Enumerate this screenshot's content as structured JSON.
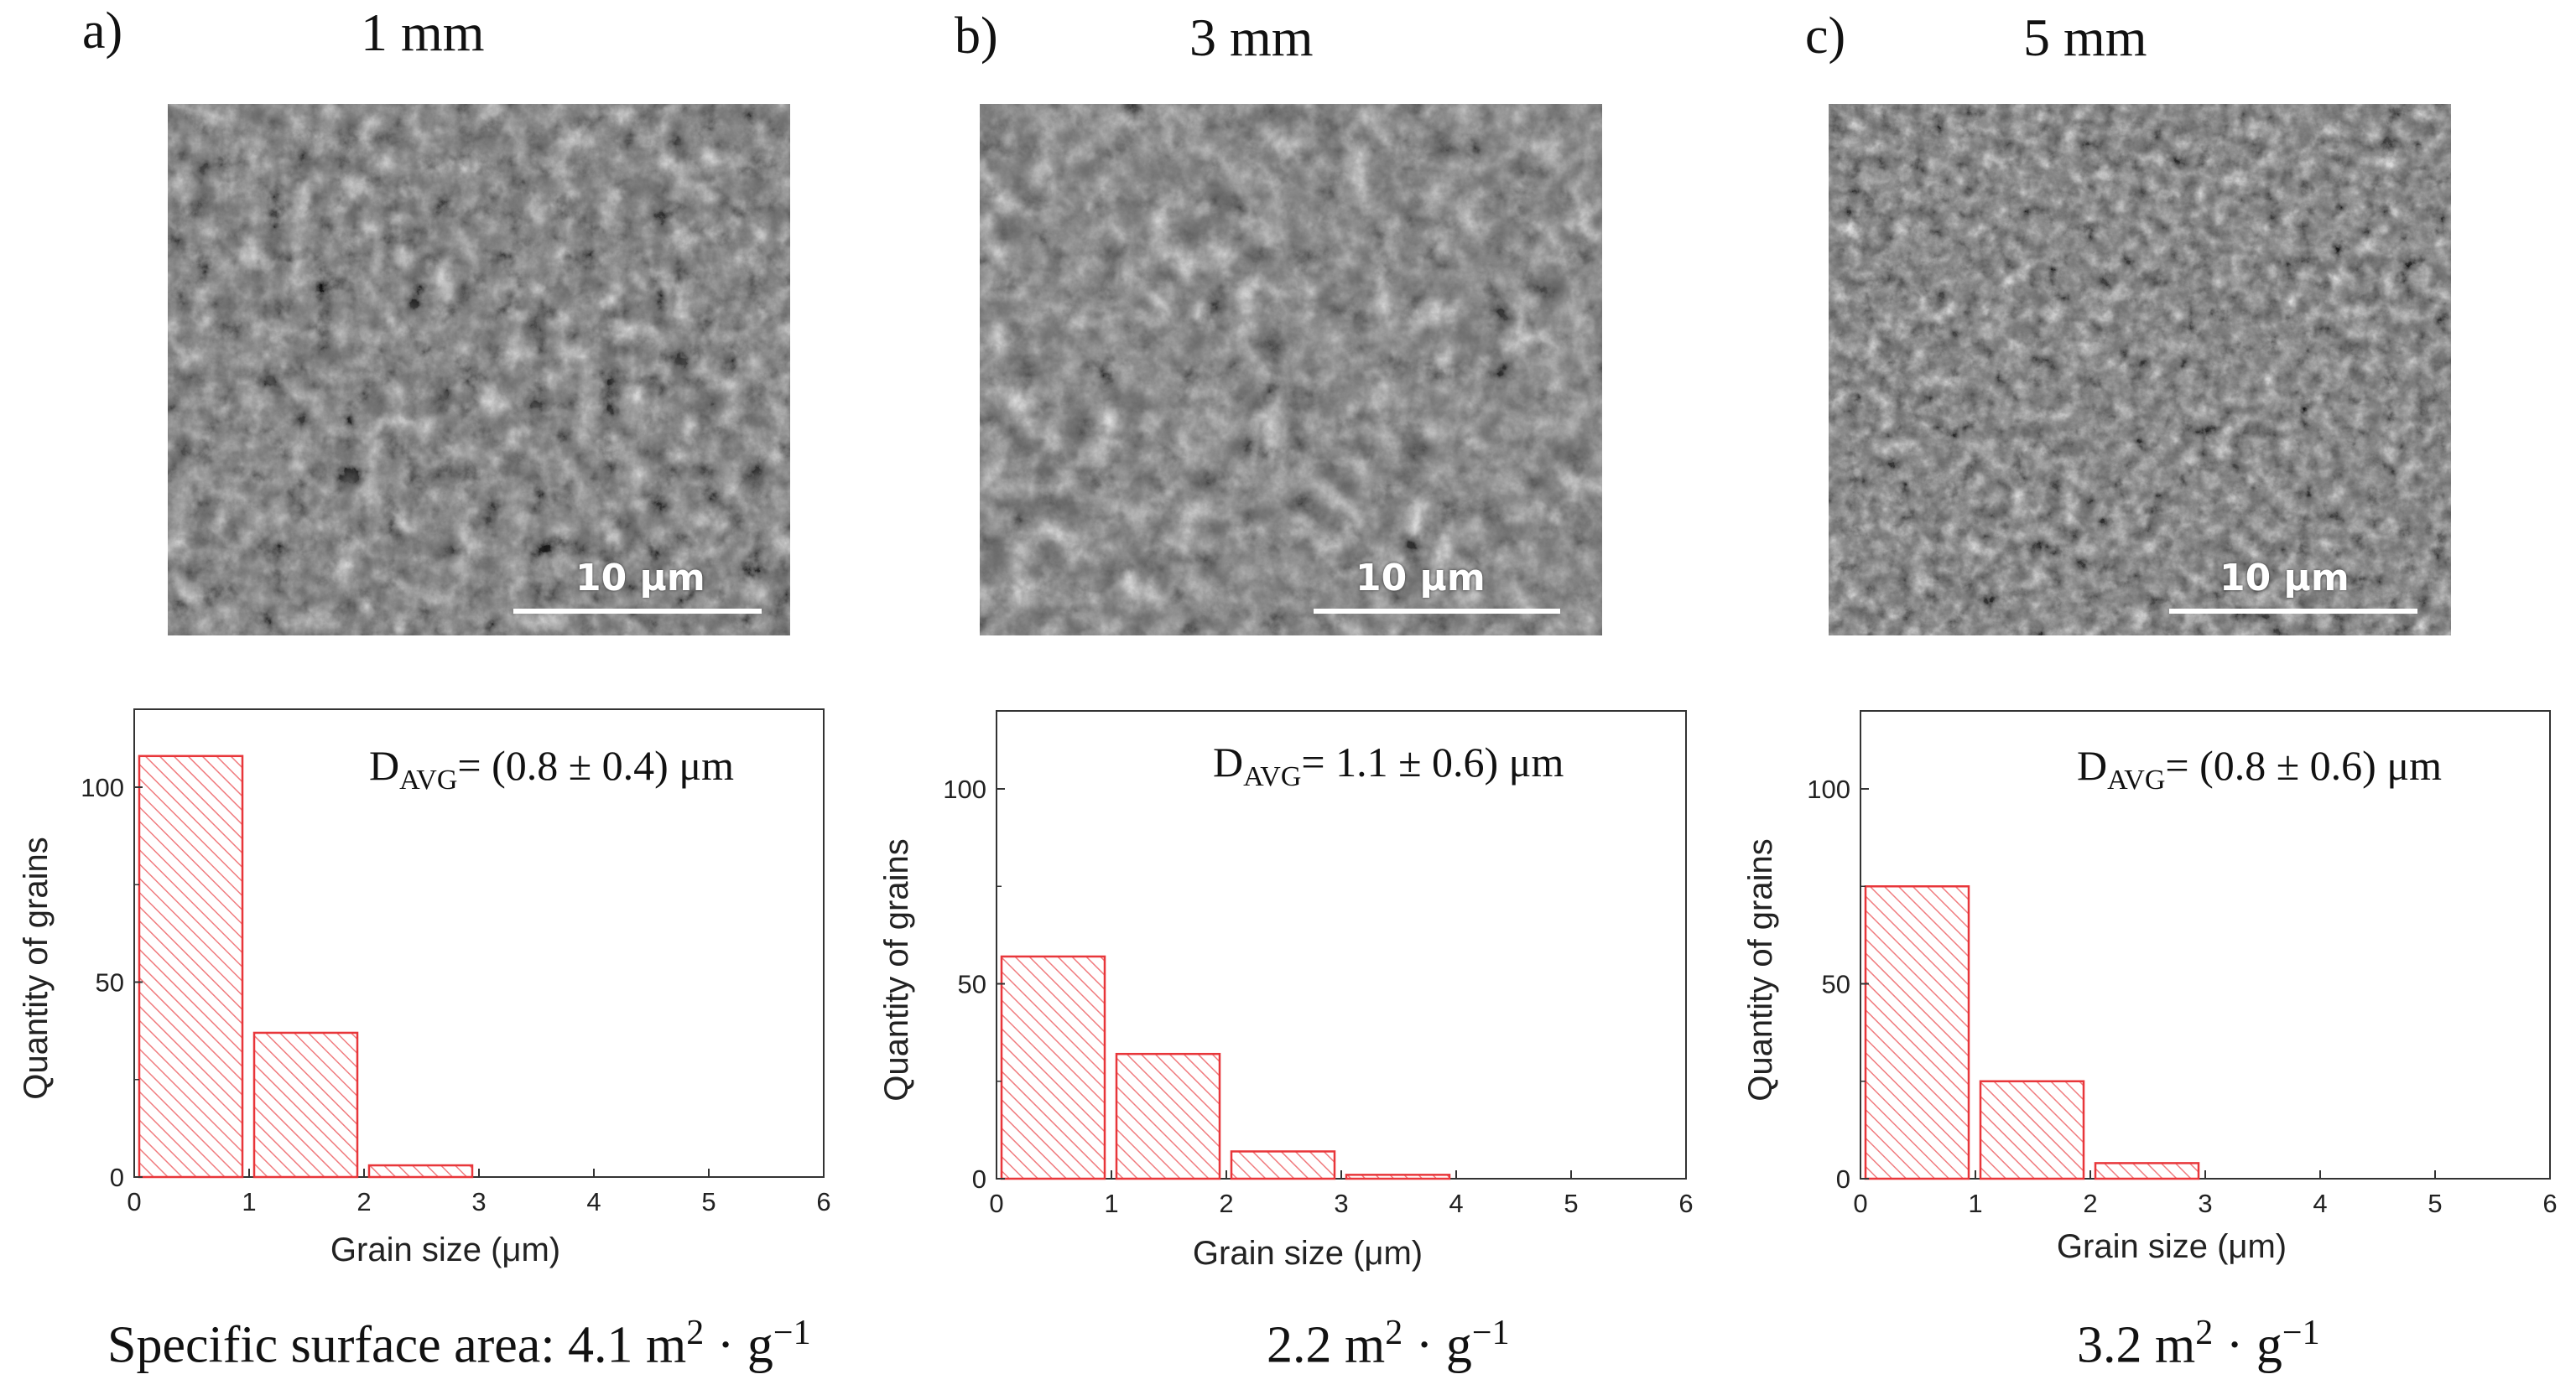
{
  "panels": [
    {
      "label": "a)",
      "title": "1 mm",
      "scale_text": "10 μm",
      "davg": {
        "prefix": "D",
        "sub": "AVG",
        "text": "= (0.8 ± 0.4) μm"
      },
      "ssa": {
        "prefix": "Specific surface area:  4.1 m",
        "sup": "2",
        "middle": " · g",
        "sup2": "−1"
      }
    },
    {
      "label": "b)",
      "title": "3 mm",
      "scale_text": "10 μm",
      "davg": {
        "prefix": "D",
        "sub": "AVG",
        "text": "= 1.1 ± 0.6) μm"
      },
      "ssa": {
        "prefix": "2.2 m",
        "sup": "2",
        "middle": " · g",
        "sup2": "−1"
      }
    },
    {
      "label": "c)",
      "title": "5 mm",
      "scale_text": "10 μm",
      "davg": {
        "prefix": "D",
        "sub": "AVG",
        "text": "= (0.8 ± 0.6) μm"
      },
      "ssa": {
        "prefix": "3.2 m",
        "sup": "2",
        "middle": " · g",
        "sup2": "−1"
      }
    }
  ],
  "colors": {
    "bar_stroke": "#e8363a",
    "hatch": "#f07b7e"
  },
  "chart_data": [
    {
      "type": "bar",
      "categories": [
        "0-1",
        "1-2",
        "2-3",
        "3-4",
        "4-5",
        "5-6"
      ],
      "values": [
        108,
        37,
        3,
        0,
        0,
        0
      ],
      "xlim": [
        0,
        6
      ],
      "ylim": [
        0,
        120
      ],
      "xticks": [
        "0",
        "1",
        "2",
        "3",
        "4",
        "5",
        "6"
      ],
      "yticks": [
        "0",
        "50",
        "100"
      ],
      "xlabel": "Grain size (μm)",
      "ylabel": "Quantity of grains"
    },
    {
      "type": "bar",
      "categories": [
        "0-1",
        "1-2",
        "2-3",
        "3-4",
        "4-5",
        "5-6"
      ],
      "values": [
        57,
        32,
        7,
        1,
        0,
        0
      ],
      "xlim": [
        0,
        6
      ],
      "ylim": [
        0,
        120
      ],
      "xticks": [
        "0",
        "1",
        "2",
        "3",
        "4",
        "5",
        "6"
      ],
      "yticks": [
        "0",
        "50",
        "100"
      ],
      "xlabel": "Grain size (μm)",
      "ylabel": "Quantity of grains"
    },
    {
      "type": "bar",
      "categories": [
        "0-1",
        "1-2",
        "2-3",
        "3-4",
        "4-5",
        "5-6"
      ],
      "values": [
        75,
        25,
        4,
        0,
        0,
        0
      ],
      "xlim": [
        0,
        6
      ],
      "ylim": [
        0,
        120
      ],
      "xticks": [
        "0",
        "1",
        "2",
        "3",
        "4",
        "5",
        "6"
      ],
      "yticks": [
        "0",
        "50",
        "100"
      ],
      "xlabel": "Grain size (μm)",
      "ylabel": "Quantity of grains"
    }
  ]
}
